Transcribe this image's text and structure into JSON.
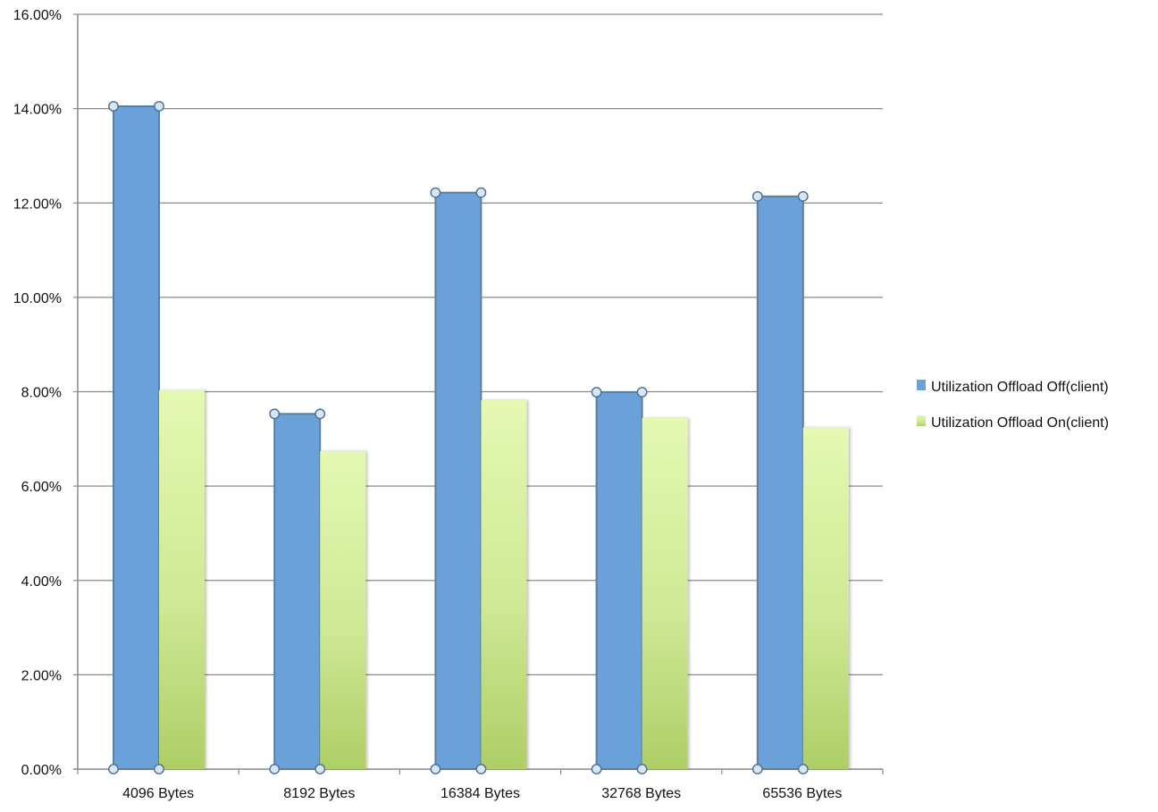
{
  "chart_data": {
    "type": "bar",
    "categories": [
      "4096 Bytes",
      "8192 Bytes",
      "16384 Bytes",
      "32768 Bytes",
      "65536 Bytes"
    ],
    "series": [
      {
        "name": "Utilization Offload Off(client)",
        "values": [
          14.05,
          7.53,
          12.22,
          7.99,
          12.14
        ],
        "color": "#6aa1d8"
      },
      {
        "name": "Utilization Offload On(client)",
        "values": [
          8.03,
          6.74,
          7.82,
          7.44,
          7.24
        ],
        "color_top": "#e4f8b2",
        "color_bottom": "#aece66"
      }
    ],
    "ylim": [
      0,
      16
    ],
    "yticks": [
      "0.00%",
      "2.00%",
      "4.00%",
      "6.00%",
      "8.00%",
      "10.00%",
      "12.00%",
      "14.00%",
      "16.00%"
    ],
    "grid": true,
    "legend_position": "right",
    "title": "",
    "xlabel": "",
    "ylabel": ""
  }
}
